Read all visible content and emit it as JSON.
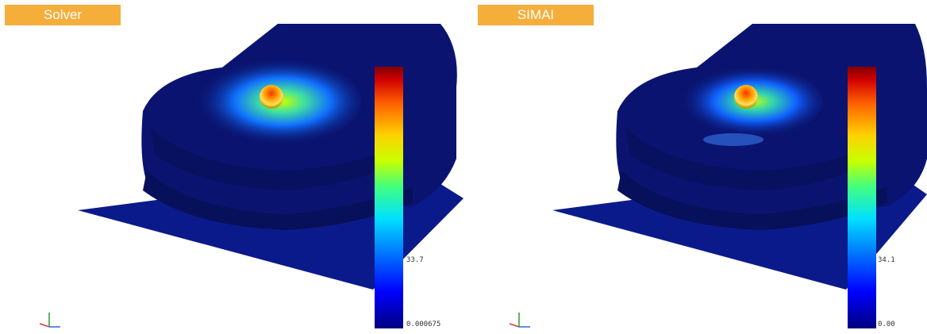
{
  "panels": [
    {
      "title": "Solver",
      "colorbar": {
        "mid_label": "33.7",
        "min_label": "0.000675"
      }
    },
    {
      "title": "SIMAI",
      "colorbar": {
        "mid_label": "34.1",
        "min_label": "0.00"
      }
    }
  ],
  "colors": {
    "badge": "#f5ae3a",
    "field_low": "#0a1470",
    "field_high": "#d01010"
  }
}
